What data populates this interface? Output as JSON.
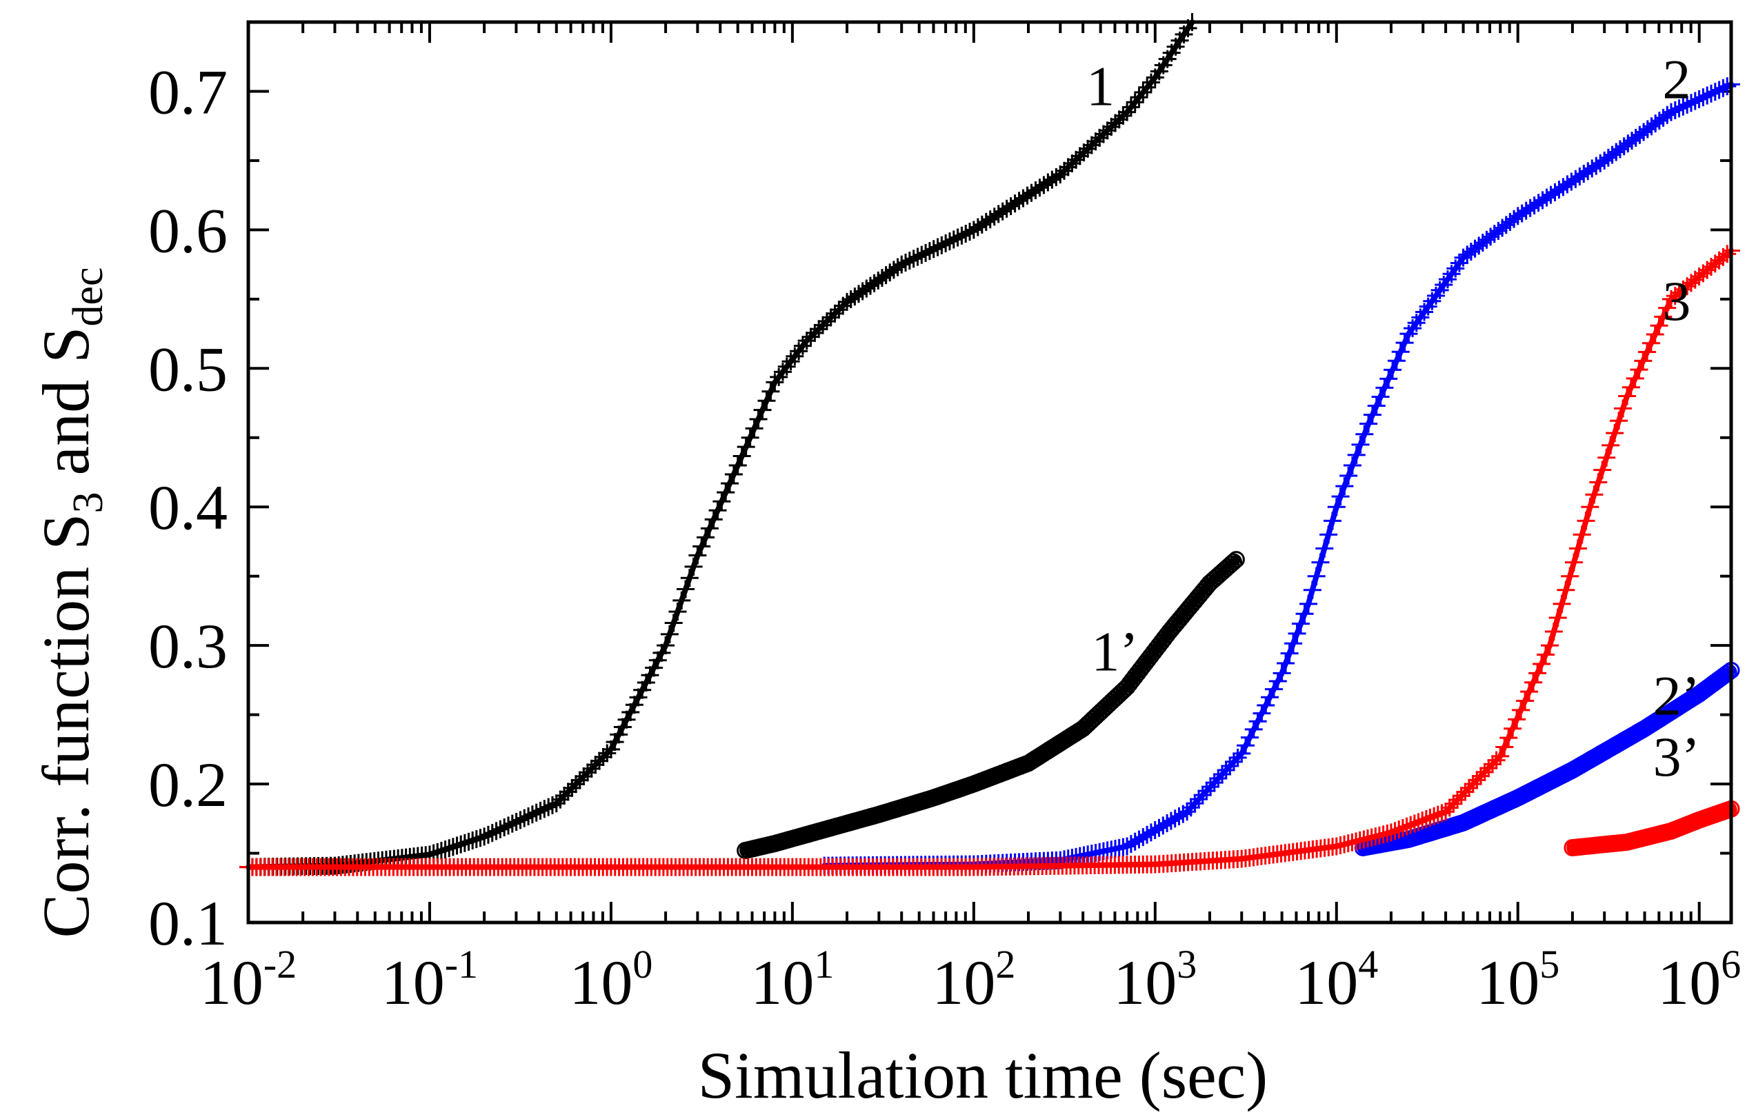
{
  "chart_data": {
    "type": "scatter",
    "xlabel": "Simulation time (sec)",
    "ylabel": {
      "prefix": "Corr. function S",
      "sub1": "3",
      "middle": " and S",
      "sub2": "dec"
    },
    "xscale": "log",
    "xlim": [
      0.01,
      1500000
    ],
    "ylim": [
      0.1,
      0.75
    ],
    "x_ticks": [
      {
        "base": "10",
        "exp": "-2",
        "value": 0.01
      },
      {
        "base": "10",
        "exp": "-1",
        "value": 0.1
      },
      {
        "base": "10",
        "exp": "0",
        "value": 1
      },
      {
        "base": "10",
        "exp": "1",
        "value": 10
      },
      {
        "base": "10",
        "exp": "2",
        "value": 100
      },
      {
        "base": "10",
        "exp": "3",
        "value": 1000
      },
      {
        "base": "10",
        "exp": "4",
        "value": 10000
      },
      {
        "base": "10",
        "exp": "5",
        "value": 100000
      },
      {
        "base": "10",
        "exp": "6",
        "value": 1000000
      }
    ],
    "y_ticks": [
      {
        "label": "0.1",
        "value": 0.1
      },
      {
        "label": "0.2",
        "value": 0.2
      },
      {
        "label": "0.3",
        "value": 0.3
      },
      {
        "label": "0.4",
        "value": 0.4
      },
      {
        "label": "0.5",
        "value": 0.5
      },
      {
        "label": "0.6",
        "value": 0.6
      },
      {
        "label": "0.7",
        "value": 0.7
      }
    ],
    "series": [
      {
        "name": "1",
        "color": "#000000",
        "marker": "plus",
        "points": [
          [
            0.01,
            0.14
          ],
          [
            0.03,
            0.141
          ],
          [
            0.1,
            0.149
          ],
          [
            0.2,
            0.162
          ],
          [
            0.5,
            0.186
          ],
          [
            1,
            0.225
          ],
          [
            2,
            0.3
          ],
          [
            3,
            0.365
          ],
          [
            5,
            0.43
          ],
          [
            8,
            0.49
          ],
          [
            12,
            0.52
          ],
          [
            20,
            0.548
          ],
          [
            40,
            0.575
          ],
          [
            100,
            0.6
          ],
          [
            300,
            0.64
          ],
          [
            700,
            0.685
          ],
          [
            1000,
            0.71
          ],
          [
            1600,
            0.75
          ]
        ],
        "label": {
          "text": "1",
          "x": 500,
          "y": 0.69
        }
      },
      {
        "name": "1’",
        "color": "#000000",
        "marker": "circle",
        "points": [
          [
            5.5,
            0.152
          ],
          [
            8,
            0.157
          ],
          [
            15,
            0.167
          ],
          [
            30,
            0.178
          ],
          [
            60,
            0.19
          ],
          [
            100,
            0.2
          ],
          [
            200,
            0.215
          ],
          [
            400,
            0.24
          ],
          [
            700,
            0.27
          ],
          [
            1200,
            0.31
          ],
          [
            2000,
            0.345
          ],
          [
            2800,
            0.362
          ]
        ],
        "label": {
          "text": "1’",
          "x": 600,
          "y": 0.282
        }
      },
      {
        "name": "2",
        "color": "#0000ff",
        "marker": "plus",
        "points": [
          [
            15,
            0.141
          ],
          [
            100,
            0.142
          ],
          [
            300,
            0.145
          ],
          [
            700,
            0.155
          ],
          [
            1500,
            0.18
          ],
          [
            3000,
            0.222
          ],
          [
            5000,
            0.28
          ],
          [
            7000,
            0.33
          ],
          [
            10000,
            0.4
          ],
          [
            15000,
            0.46
          ],
          [
            25000,
            0.525
          ],
          [
            50000,
            0.58
          ],
          [
            100000,
            0.61
          ],
          [
            300000,
            0.65
          ],
          [
            700000,
            0.685
          ],
          [
            1500000,
            0.705
          ]
        ],
        "label": {
          "text": "2",
          "x": 750000,
          "y": 0.695
        }
      },
      {
        "name": "2’",
        "color": "#0000ff",
        "marker": "circle",
        "points": [
          [
            14000,
            0.154
          ],
          [
            25000,
            0.16
          ],
          [
            50000,
            0.172
          ],
          [
            100000,
            0.19
          ],
          [
            200000,
            0.21
          ],
          [
            500000,
            0.24
          ],
          [
            1000000,
            0.265
          ],
          [
            1500000,
            0.282
          ]
        ],
        "label": {
          "text": "2’",
          "x": 750000,
          "y": 0.25
        }
      },
      {
        "name": "3",
        "color": "#ff0000",
        "marker": "plus",
        "points": [
          [
            0.01,
            0.14
          ],
          [
            1,
            0.14
          ],
          [
            100,
            0.14
          ],
          [
            1000,
            0.142
          ],
          [
            3000,
            0.146
          ],
          [
            10000,
            0.155
          ],
          [
            20000,
            0.165
          ],
          [
            40000,
            0.18
          ],
          [
            80000,
            0.22
          ],
          [
            150000,
            0.3
          ],
          [
            250000,
            0.4
          ],
          [
            400000,
            0.48
          ],
          [
            700000,
            0.55
          ],
          [
            1500000,
            0.585
          ]
        ],
        "label": {
          "text": "3",
          "x": 750000,
          "y": 0.535
        }
      },
      {
        "name": "3’",
        "color": "#ff0000",
        "marker": "circle",
        "points": [
          [
            200000,
            0.154
          ],
          [
            400000,
            0.158
          ],
          [
            700000,
            0.166
          ],
          [
            1000000,
            0.174
          ],
          [
            1500000,
            0.182
          ]
        ],
        "label": {
          "text": "3’",
          "x": 750000,
          "y": 0.206
        }
      }
    ]
  }
}
